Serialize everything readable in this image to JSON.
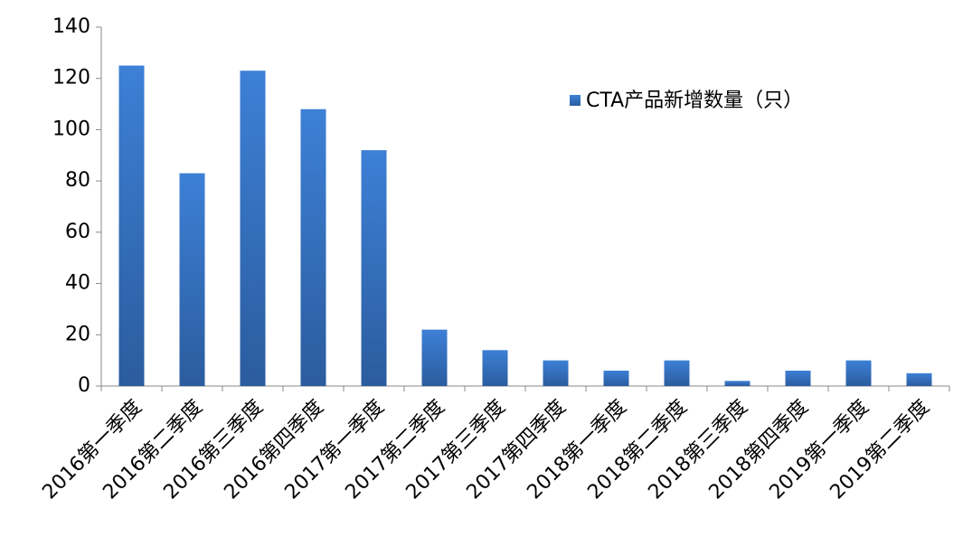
{
  "chart_data": {
    "type": "bar",
    "categories": [
      "2016第一季度",
      "2016第二季度",
      "2016第三季度",
      "2016第四季度",
      "2017第一季度",
      "2017第二季度",
      "2017第三季度",
      "2017第四季度",
      "2018第一季度",
      "2018第二季度",
      "2018第三季度",
      "2018第四季度",
      "2019第一季度",
      "2019第二季度"
    ],
    "series": [
      {
        "name": "CTA产品新增数量（只）",
        "color": "#3d80d6",
        "values": [
          125,
          83,
          123,
          108,
          92,
          22,
          14,
          10,
          6,
          10,
          2,
          6,
          10,
          5
        ]
      }
    ],
    "ylim": [
      0,
      140
    ],
    "yticks": [
      0,
      20,
      40,
      60,
      80,
      100,
      120,
      140
    ],
    "grid": false,
    "legend": "top-right"
  }
}
